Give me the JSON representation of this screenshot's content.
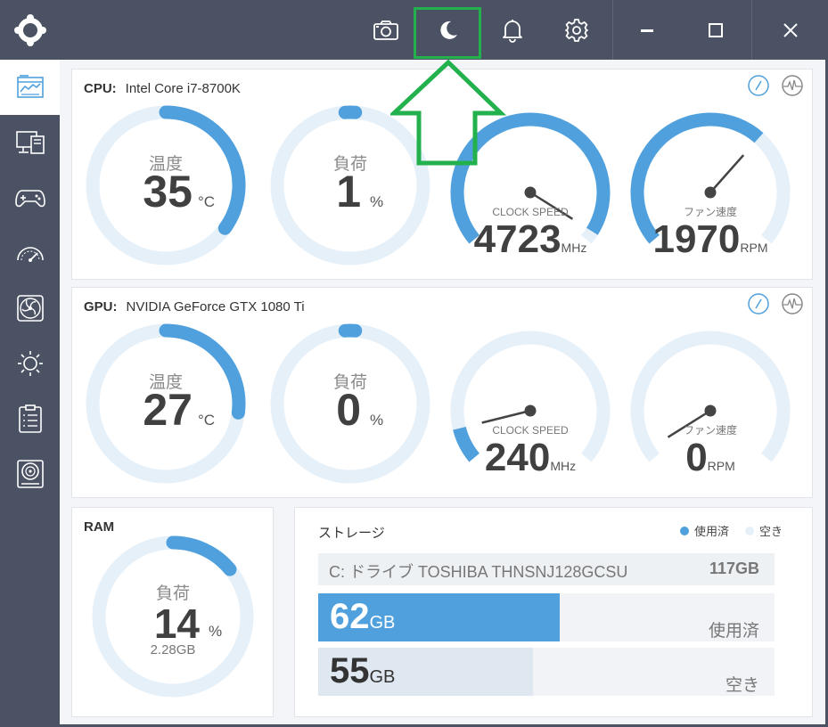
{
  "colors": {
    "accent": "#4fa0dd",
    "track": "#e6f0f9",
    "titlebar": "#4a5263",
    "highlight": "#23b14d"
  },
  "titlebar": {
    "icons": [
      "logo-icon",
      "camera-icon",
      "moon-icon",
      "bell-icon",
      "gear-icon",
      "minimize-icon",
      "maximize-icon",
      "close-icon"
    ]
  },
  "sidebar": {
    "items": [
      "dashboard-icon",
      "monitor-icon",
      "gamepad-icon",
      "speedometer-icon",
      "fan-icon",
      "brightness-icon",
      "clipboard-icon",
      "disk-icon"
    ],
    "active_index": 0
  },
  "cpu": {
    "label": "CPU:",
    "name": "Intel Core i7-8700K",
    "temp": {
      "title": "温度",
      "value": "35",
      "unit": "°C",
      "fraction": 0.35
    },
    "load": {
      "title": "負荷",
      "value": "1",
      "unit": "%",
      "fraction": 0.01
    },
    "clock": {
      "title": "CLOCK SPEED",
      "value": "4723",
      "unit": "MHz",
      "fraction": 0.97
    },
    "fan": {
      "title": "ファン速度",
      "value": "1970",
      "unit": "RPM",
      "fraction": 0.66
    }
  },
  "gpu": {
    "label": "GPU:",
    "name": "NVIDIA GeForce GTX 1080 Ti",
    "temp": {
      "title": "温度",
      "value": "27",
      "unit": "°C",
      "fraction": 0.27
    },
    "load": {
      "title": "負荷",
      "value": "0",
      "unit": "%",
      "fraction": 0.0
    },
    "clock": {
      "title": "CLOCK SPEED",
      "value": "240",
      "unit": "MHz",
      "fraction": 0.1
    },
    "fan": {
      "title": "ファン速度",
      "value": "0",
      "unit": "RPM",
      "fraction": 0.0
    }
  },
  "ram": {
    "label": "RAM",
    "title": "負荷",
    "value": "14",
    "unit": "%",
    "sub": "2.28GB",
    "fraction": 0.14
  },
  "storage": {
    "title": "ストレージ",
    "legend_used": "使用済",
    "legend_free": "空き",
    "drive_label": "C: ドライブ TOSHIBA THNSNJ128GCSU",
    "drive_total": "117GB",
    "used_value": "62",
    "used_unit": "GB",
    "used_label": "使用済",
    "used_fraction": 0.53,
    "free_value": "55",
    "free_unit": "GB",
    "free_label": "空き",
    "free_fraction": 0.47
  }
}
